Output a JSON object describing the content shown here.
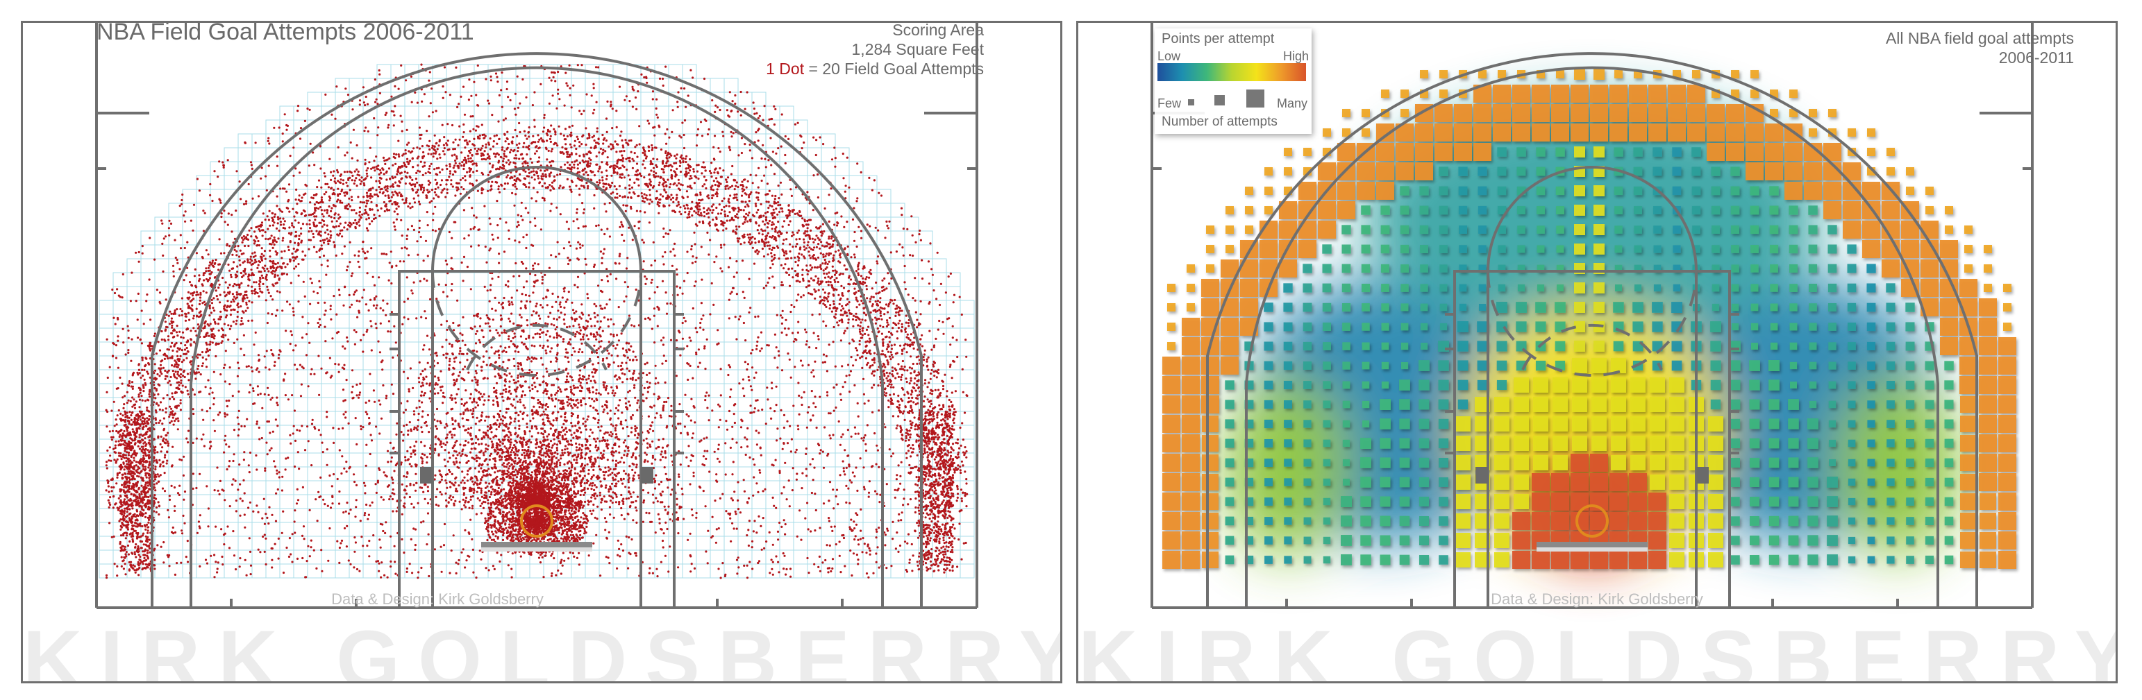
{
  "left": {
    "title": "NBA Field Goal Attempts 2006-2011",
    "info_line1": "Scoring Area",
    "info_line2": "1,284 Square Feet",
    "dot_key_bold": "1 Dot",
    "dot_key_rest": " = 20 Field Goal Attempts",
    "credit": "Data & Design: Kirk Goldsberry",
    "watermark": "KIRK GOLDSBERRY",
    "dot_color": "#b3171c",
    "grid_color": "#a8dde8"
  },
  "right": {
    "caption_line1": "All NBA field goal attempts",
    "caption_line2": "2006-2011",
    "legend": {
      "title": "Points per attempt",
      "low": "Low",
      "high": "High",
      "few": "Few",
      "many": "Many",
      "size_label": "Number of attempts"
    },
    "credit": "Data & Design: Kirk Goldsberry",
    "watermark": "KIRK GOLDSBERRY"
  },
  "court_line_color": "#6f6f6f",
  "rim_color": "#e08a1e"
}
